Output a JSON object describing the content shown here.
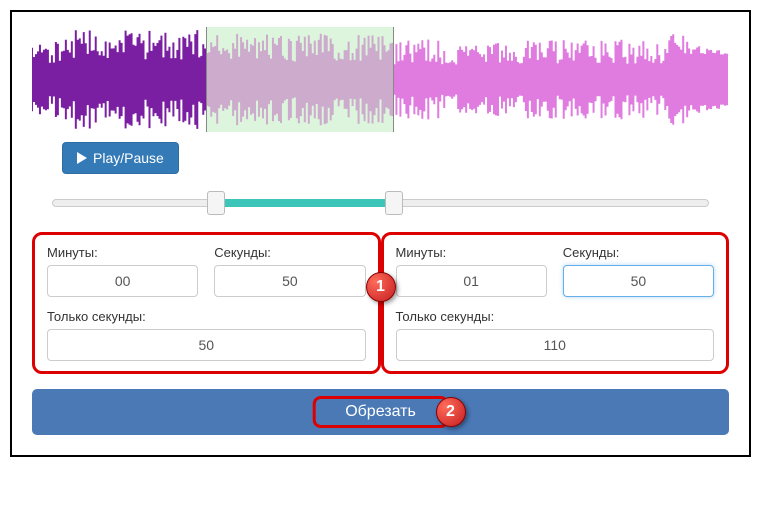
{
  "waveform": {
    "selection_start_pct": 25,
    "selection_end_pct": 52,
    "colors": {
      "played": "#7b1fa2",
      "unplayed": "#e07be0",
      "selection_bg": "rgba(180,230,180,0.45)"
    }
  },
  "play_button": {
    "label": "Play/Pause"
  },
  "slider": {
    "start_pct": 25,
    "end_pct": 52,
    "range_color": "#3bc6b9"
  },
  "start_panel": {
    "minutes_label": "Минуты:",
    "minutes_value": "00",
    "seconds_label": "Секунды:",
    "seconds_value": "50",
    "only_seconds_label": "Только секунды:",
    "only_seconds_value": "50"
  },
  "end_panel": {
    "minutes_label": "Минуты:",
    "minutes_value": "01",
    "seconds_label": "Секунды:",
    "seconds_value": "50",
    "only_seconds_label": "Только секунды:",
    "only_seconds_value": "110"
  },
  "cut_button": {
    "label": "Обрезать"
  },
  "annotations": {
    "badge1": "1",
    "badge2": "2"
  },
  "colors": {
    "highlight_border": "#d00",
    "primary_btn": "#337ab7",
    "cut_btn": "#4a79b6"
  }
}
